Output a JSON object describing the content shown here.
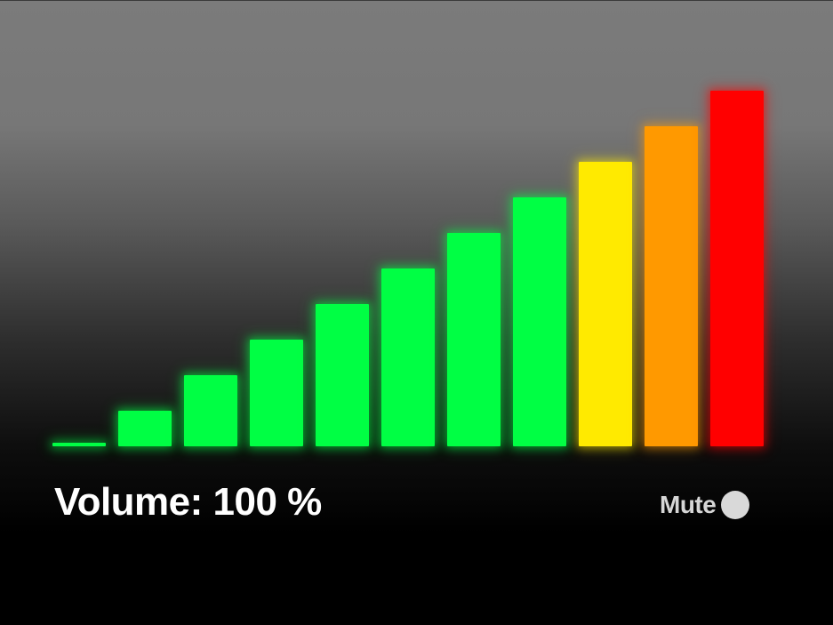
{
  "volume": {
    "label": "Volume: 100 %",
    "level_percent": 100
  },
  "meter": {
    "bar_levels": [
      0.01,
      0.1,
      0.2,
      0.3,
      0.4,
      0.5,
      0.6,
      0.7,
      0.8,
      0.9,
      1.0
    ],
    "bar_colors": [
      "#00ff44",
      "#00ff44",
      "#00ff44",
      "#00ff44",
      "#00ff44",
      "#00ff44",
      "#00ff44",
      "#00ff44",
      "#ffea00",
      "#ff9900",
      "#ff0000"
    ]
  },
  "mute": {
    "label": "Mute",
    "icon": "toggle-circle-icon",
    "indicator_color": "#d9d9d9",
    "muted": false
  }
}
